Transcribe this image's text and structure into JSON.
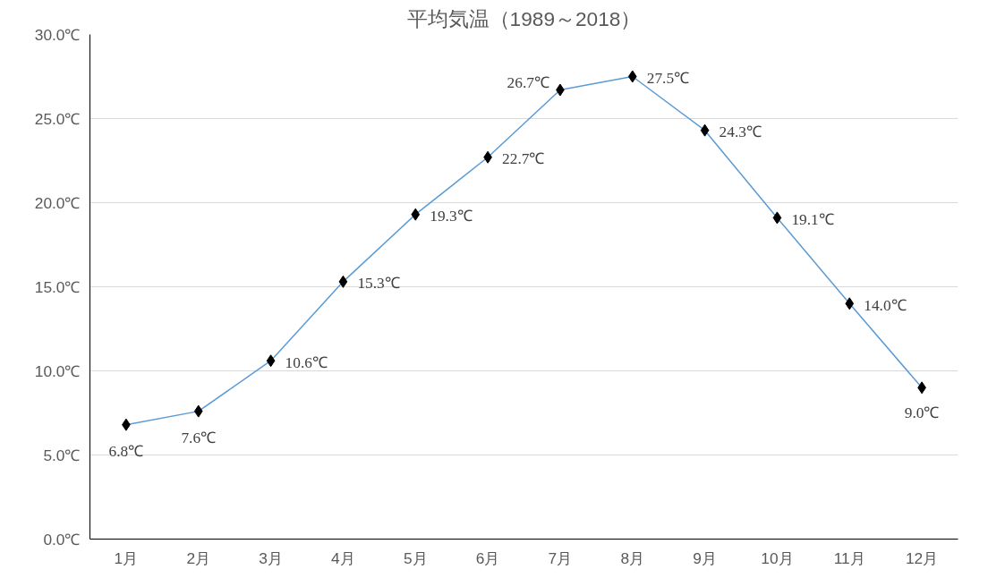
{
  "chart_data": {
    "type": "line",
    "title": "平均気温（1989～2018）",
    "categories": [
      "1月",
      "2月",
      "3月",
      "4月",
      "5月",
      "6月",
      "7月",
      "8月",
      "9月",
      "10月",
      "11月",
      "12月"
    ],
    "series": [
      {
        "color": "#5b9bd5",
        "values": [
          6.8,
          7.6,
          10.6,
          15.3,
          19.3,
          22.7,
          26.7,
          27.5,
          24.3,
          19.1,
          14.0,
          9.0
        ],
        "value_labels": [
          "6.8℃",
          "7.6℃",
          "10.6℃",
          "15.3℃",
          "19.3℃",
          "22.7℃",
          "26.7℃",
          "27.5℃",
          "24.3℃",
          "19.1℃",
          "14.0℃",
          "9.0℃"
        ]
      }
    ],
    "ylim": [
      0,
      30
    ],
    "yticks": [
      {
        "value": 0,
        "label": "0.0℃"
      },
      {
        "value": 5,
        "label": "5.0℃"
      },
      {
        "value": 10,
        "label": "10.0℃"
      },
      {
        "value": 15,
        "label": "15.0℃"
      },
      {
        "value": 20,
        "label": "20.0℃"
      },
      {
        "value": 25,
        "label": "25.0℃"
      },
      {
        "value": 30,
        "label": "30.0℃"
      }
    ],
    "grid": "y",
    "marker": "diamond",
    "line_style": "solid"
  }
}
